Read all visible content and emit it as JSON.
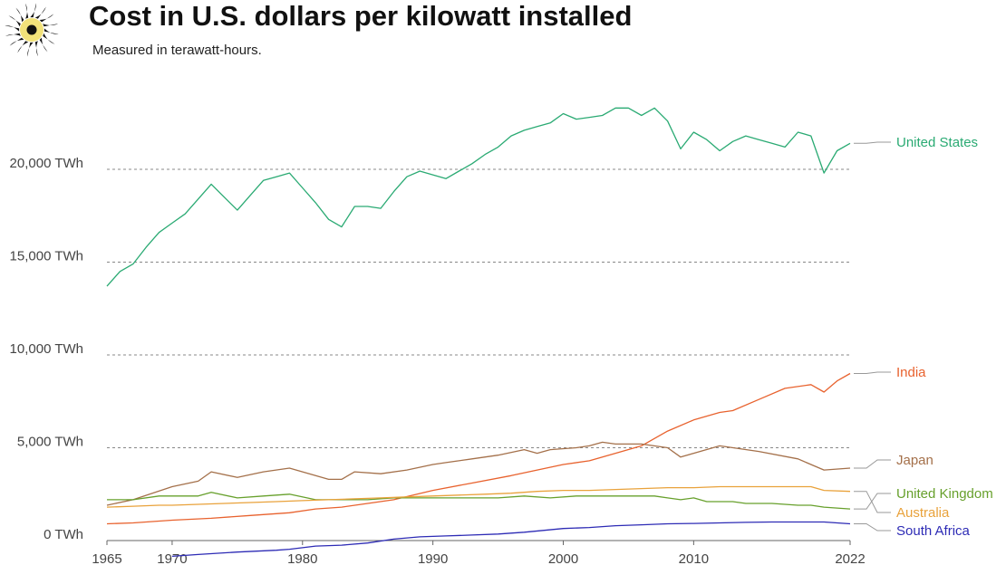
{
  "header": {
    "title": "Cost in U.S. dollars per kilowatt installed",
    "subtitle": "Measured in terawatt-hours."
  },
  "colors": {
    "logo_yellow": "#f2e27a",
    "logo_black": "#111111"
  },
  "icons": {
    "logo": "sun-icon"
  },
  "chart_data": {
    "type": "line",
    "title": "Cost in U.S. dollars per kilowatt installed",
    "subtitle": "Measured in terawatt-hours.",
    "xlabel": "",
    "ylabel": "",
    "xlim": [
      1965,
      2022
    ],
    "ylim": [
      -900,
      24000
    ],
    "y_ticks": [
      0,
      5000,
      10000,
      15000,
      20000
    ],
    "y_tick_labels": [
      "0 TWh",
      "5,000 TWh",
      "10,000 TWh",
      "15,000 TWh",
      "20,000 TWh"
    ],
    "x_ticks": [
      1965,
      1970,
      1980,
      1990,
      2000,
      2010,
      2022
    ],
    "x_tick_labels": [
      "1965",
      "1970",
      "1980",
      "1990",
      "2000",
      "2010",
      "2022"
    ],
    "grid": "horizontal dashed",
    "legend": "labels at right end of lines",
    "series": [
      {
        "name": "United States",
        "color": "#2aaa73",
        "x": [
          1965,
          1966,
          1967,
          1968,
          1969,
          1970,
          1971,
          1972,
          1973,
          1974,
          1975,
          1976,
          1977,
          1978,
          1979,
          1980,
          1981,
          1982,
          1983,
          1984,
          1985,
          1986,
          1987,
          1988,
          1989,
          1990,
          1991,
          1992,
          1993,
          1994,
          1995,
          1996,
          1997,
          1998,
          1999,
          2000,
          2001,
          2002,
          2003,
          2004,
          2005,
          2006,
          2007,
          2008,
          2009,
          2010,
          2011,
          2012,
          2013,
          2014,
          2015,
          2016,
          2017,
          2018,
          2019,
          2020,
          2021,
          2022
        ],
        "values": [
          13700,
          14500,
          14900,
          15800,
          16600,
          17100,
          17600,
          18400,
          19200,
          18500,
          17800,
          18600,
          19400,
          19600,
          19800,
          19000,
          18200,
          17300,
          16900,
          18000,
          18000,
          17900,
          18800,
          19600,
          19900,
          19700,
          19500,
          19900,
          20300,
          20800,
          21200,
          21800,
          22100,
          22300,
          22500,
          23000,
          22700,
          22800,
          22900,
          23300,
          23300,
          22900,
          23300,
          22600,
          21100,
          22000,
          21600,
          21000,
          21500,
          21800,
          21600,
          21400,
          21200,
          22000,
          21800,
          19800,
          21000,
          21400
        ]
      },
      {
        "name": "India",
        "color": "#e8622e",
        "x": [
          1965,
          1967,
          1970,
          1973,
          1976,
          1979,
          1981,
          1983,
          1985,
          1987,
          1990,
          1993,
          1996,
          1998,
          2000,
          2002,
          2004,
          2006,
          2008,
          2010,
          2012,
          2013,
          2015,
          2017,
          2019,
          2020,
          2021,
          2022
        ],
        "values": [
          900,
          950,
          1100,
          1200,
          1350,
          1500,
          1700,
          1800,
          2000,
          2200,
          2700,
          3100,
          3500,
          3800,
          4100,
          4300,
          4700,
          5100,
          5900,
          6500,
          6900,
          7000,
          7600,
          8200,
          8400,
          8000,
          8600,
          9000
        ]
      },
      {
        "name": "Japan",
        "color": "#a4704a",
        "x": [
          1965,
          1967,
          1970,
          1972,
          1973,
          1975,
          1977,
          1979,
          1981,
          1982,
          1983,
          1984,
          1986,
          1988,
          1990,
          1991,
          1993,
          1995,
          1997,
          1998,
          1999,
          2001,
          2002,
          2003,
          2004,
          2006,
          2008,
          2009,
          2010,
          2012,
          2015,
          2018,
          2019,
          2020,
          2022
        ],
        "values": [
          1900,
          2200,
          2900,
          3200,
          3700,
          3400,
          3700,
          3900,
          3500,
          3300,
          3300,
          3700,
          3600,
          3800,
          4100,
          4200,
          4400,
          4600,
          4900,
          4700,
          4900,
          5000,
          5100,
          5300,
          5200,
          5200,
          5000,
          4500,
          4700,
          5100,
          4800,
          4400,
          4100,
          3800,
          3900
        ]
      },
      {
        "name": "United Kingdom",
        "color": "#67a02c",
        "x": [
          1965,
          1967,
          1969,
          1970,
          1972,
          1973,
          1975,
          1977,
          1979,
          1981,
          1983,
          1985,
          1987,
          1989,
          1991,
          1993,
          1995,
          1997,
          1999,
          2001,
          2003,
          2005,
          2007,
          2008,
          2009,
          2010,
          2011,
          2013,
          2014,
          2016,
          2018,
          2019,
          2020,
          2022
        ],
        "values": [
          2200,
          2200,
          2400,
          2400,
          2400,
          2600,
          2300,
          2400,
          2500,
          2200,
          2200,
          2200,
          2300,
          2300,
          2300,
          2300,
          2300,
          2400,
          2300,
          2400,
          2400,
          2400,
          2400,
          2300,
          2200,
          2300,
          2100,
          2100,
          2000,
          2000,
          1900,
          1900,
          1800,
          1700
        ]
      },
      {
        "name": "Australia",
        "color": "#e9a23b",
        "x": [
          1965,
          1967,
          1969,
          1970,
          1972,
          1974,
          1976,
          1978,
          1980,
          1982,
          1984,
          1986,
          1988,
          1990,
          1992,
          1994,
          1996,
          1998,
          2000,
          2002,
          2004,
          2006,
          2008,
          2010,
          2012,
          2014,
          2016,
          2018,
          2019,
          2020,
          2022
        ],
        "values": [
          1800,
          1850,
          1900,
          1900,
          1950,
          2000,
          2050,
          2100,
          2150,
          2200,
          2250,
          2300,
          2350,
          2400,
          2450,
          2500,
          2550,
          2650,
          2700,
          2700,
          2750,
          2800,
          2850,
          2850,
          2900,
          2900,
          2900,
          2900,
          2900,
          2700,
          2650
        ]
      },
      {
        "name": "South Africa",
        "color": "#2d2bb5",
        "x": [
          1970,
          1972,
          1975,
          1978,
          1979,
          1981,
          1983,
          1985,
          1987,
          1989,
          1991,
          1993,
          1995,
          1997,
          2000,
          2002,
          2004,
          2006,
          2008,
          2010,
          2012,
          2014,
          2016,
          2018,
          2020,
          2021,
          2022
        ],
        "values": [
          -850,
          -750,
          -620,
          -520,
          -470,
          -300,
          -250,
          -130,
          80,
          200,
          250,
          300,
          350,
          450,
          650,
          700,
          800,
          850,
          900,
          920,
          950,
          980,
          1000,
          1000,
          1000,
          950,
          900
        ]
      }
    ]
  }
}
